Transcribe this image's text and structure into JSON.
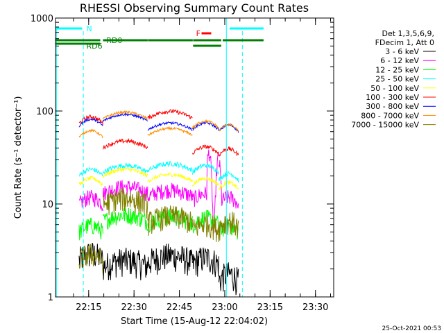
{
  "chart_data": {
    "type": "line",
    "title": "RHESSI Observing Summary Count Rates",
    "xlabel": "Start Time (15-Aug-12 22:04:02)",
    "ylabel": "Count Rate (s⁻¹ detector⁻¹)",
    "yscale": "log",
    "ylim": [
      1,
      1000
    ],
    "xlim_minutes_after_start": [
      0,
      92
    ],
    "x_tick_labels": [
      "22:15",
      "22:30",
      "22:45",
      "23:00",
      "23:15",
      "23:30"
    ],
    "y_tick_labels": [
      "1",
      "10",
      "100",
      "1000"
    ],
    "grid": false,
    "legend_position": "right",
    "legend_header": [
      "Det 1,3,5,6,9,",
      "FDecim 1, Att 0"
    ],
    "series": [
      {
        "name": "3 - 6 keV",
        "color": "#000000",
        "base": 2.5
      },
      {
        "name": "6 - 12 keV",
        "color": "#ff00ff",
        "base": 10
      },
      {
        "name": "12 - 25 keV",
        "color": "#00ff00",
        "base": 5
      },
      {
        "name": "25 - 50 keV",
        "color": "#00ffff",
        "base": 20
      },
      {
        "name": "50 - 100 keV",
        "color": "#ffff00",
        "base": 16
      },
      {
        "name": "100 - 300 keV",
        "color": "#ff0000",
        "base": 35
      },
      {
        "name": "300 - 800 keV",
        "color": "#0000ff",
        "base": 60
      },
      {
        "name": "800 - 7000 keV",
        "color": "#ff8c00",
        "base": 55
      },
      {
        "name": "7000 - 15000 keV",
        "color": "#808000",
        "base": 7
      }
    ],
    "annotations": [
      {
        "text": "N",
        "color": "#00ffff"
      },
      {
        "text": "F",
        "color": "#ff0000"
      },
      {
        "text": "RD0",
        "color": "#008000"
      },
      {
        "text": "RD6",
        "color": "#008000"
      }
    ],
    "footer_date": "25-Oct-2021 00:53"
  }
}
